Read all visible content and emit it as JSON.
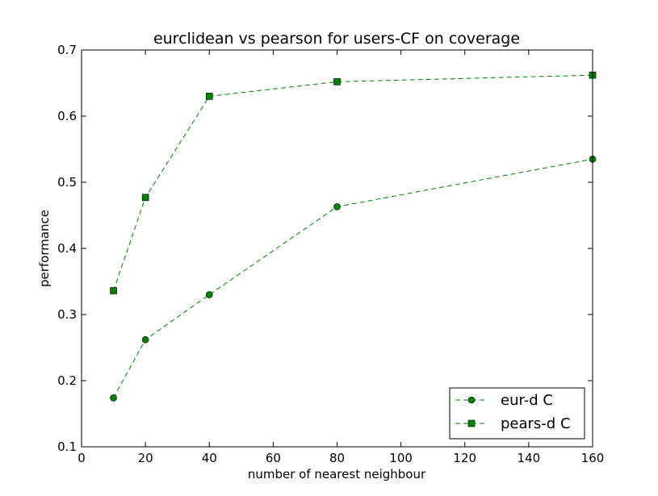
{
  "chart_data": {
    "type": "line",
    "title": "eurclidean vs pearson for users-CF on coverage",
    "xlabel": "number of nearest neighbour",
    "ylabel": "performance",
    "xlim": [
      0,
      160
    ],
    "ylim": [
      0.1,
      0.7
    ],
    "xticks": [
      0,
      20,
      40,
      60,
      80,
      100,
      120,
      140,
      160
    ],
    "yticks": [
      0.1,
      0.2,
      0.3,
      0.4,
      0.5,
      0.6,
      0.7
    ],
    "xtick_labels": [
      "0",
      "20",
      "40",
      "60",
      "80",
      "100",
      "120",
      "140",
      "160"
    ],
    "ytick_labels": [
      "0.1",
      "0.2",
      "0.3",
      "0.4",
      "0.5",
      "0.6",
      "0.7"
    ],
    "grid": false,
    "legend_position": "lower-right",
    "x": [
      10,
      20,
      40,
      80,
      160
    ],
    "series": [
      {
        "name": "eur-d C",
        "values": [
          0.174,
          0.262,
          0.33,
          0.463,
          0.535
        ],
        "marker": "circle",
        "line_style": "dashed",
        "color": "#008000"
      },
      {
        "name": "pears-d C",
        "values": [
          0.336,
          0.477,
          0.63,
          0.652,
          0.662
        ],
        "marker": "square",
        "line_style": "dashed",
        "color": "#008000"
      }
    ]
  }
}
